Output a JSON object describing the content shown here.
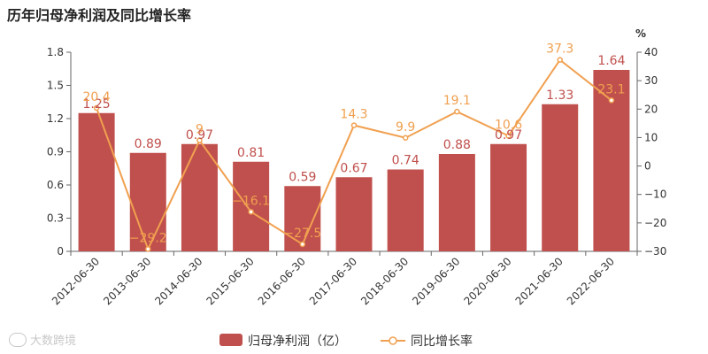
{
  "title": "历年归母净利润及同比增长率",
  "watermark": "大数跨境",
  "colors": {
    "bar": "#c0504d",
    "line": "#f0a050",
    "axis": "#666666",
    "label_bar": "#c0504d",
    "label_line": "#f0a050"
  },
  "chart_data": {
    "type": "bar",
    "title": "历年归母净利润及同比增长率",
    "categories": [
      "2012-06-30",
      "2013-06-30",
      "2014-06-30",
      "2015-06-30",
      "2016-06-30",
      "2017-06-30",
      "2018-06-30",
      "2019-06-30",
      "2020-06-30",
      "2021-06-30",
      "2022-06-30"
    ],
    "series": [
      {
        "name": "归母净利润（亿）",
        "type": "bar",
        "axis": "left",
        "values": [
          1.25,
          0.89,
          0.97,
          0.81,
          0.59,
          0.67,
          0.74,
          0.88,
          0.97,
          1.33,
          1.64
        ],
        "labels": [
          "1.25",
          "0.89",
          "0.97",
          "0.81",
          "0.59",
          "0.67",
          "0.74",
          "0.88",
          "0.97",
          "1.33",
          "1.64"
        ]
      },
      {
        "name": "同比增长率",
        "type": "line",
        "axis": "right",
        "values": [
          20.4,
          -29.2,
          9,
          -16.1,
          -27.5,
          14.3,
          9.9,
          19.1,
          10.6,
          37.3,
          23.1
        ],
        "labels": [
          "20.4",
          "−29.2",
          "9",
          "−16.1",
          "−27.5",
          "14.3",
          "9.9",
          "19.1",
          "10.6",
          "37.3",
          "23.1"
        ]
      }
    ],
    "y_left": {
      "min": 0,
      "max": 1.8,
      "ticks": [
        "0",
        "0.3",
        "0.6",
        "0.9",
        "1.2",
        "1.5",
        "1.8"
      ]
    },
    "y_right": {
      "min": -30,
      "max": 40,
      "unit": "%",
      "ticks": [
        "−30",
        "−20",
        "−10",
        "0",
        "10",
        "20",
        "30",
        "40"
      ]
    },
    "legend": {
      "position": "bottom-center"
    }
  }
}
